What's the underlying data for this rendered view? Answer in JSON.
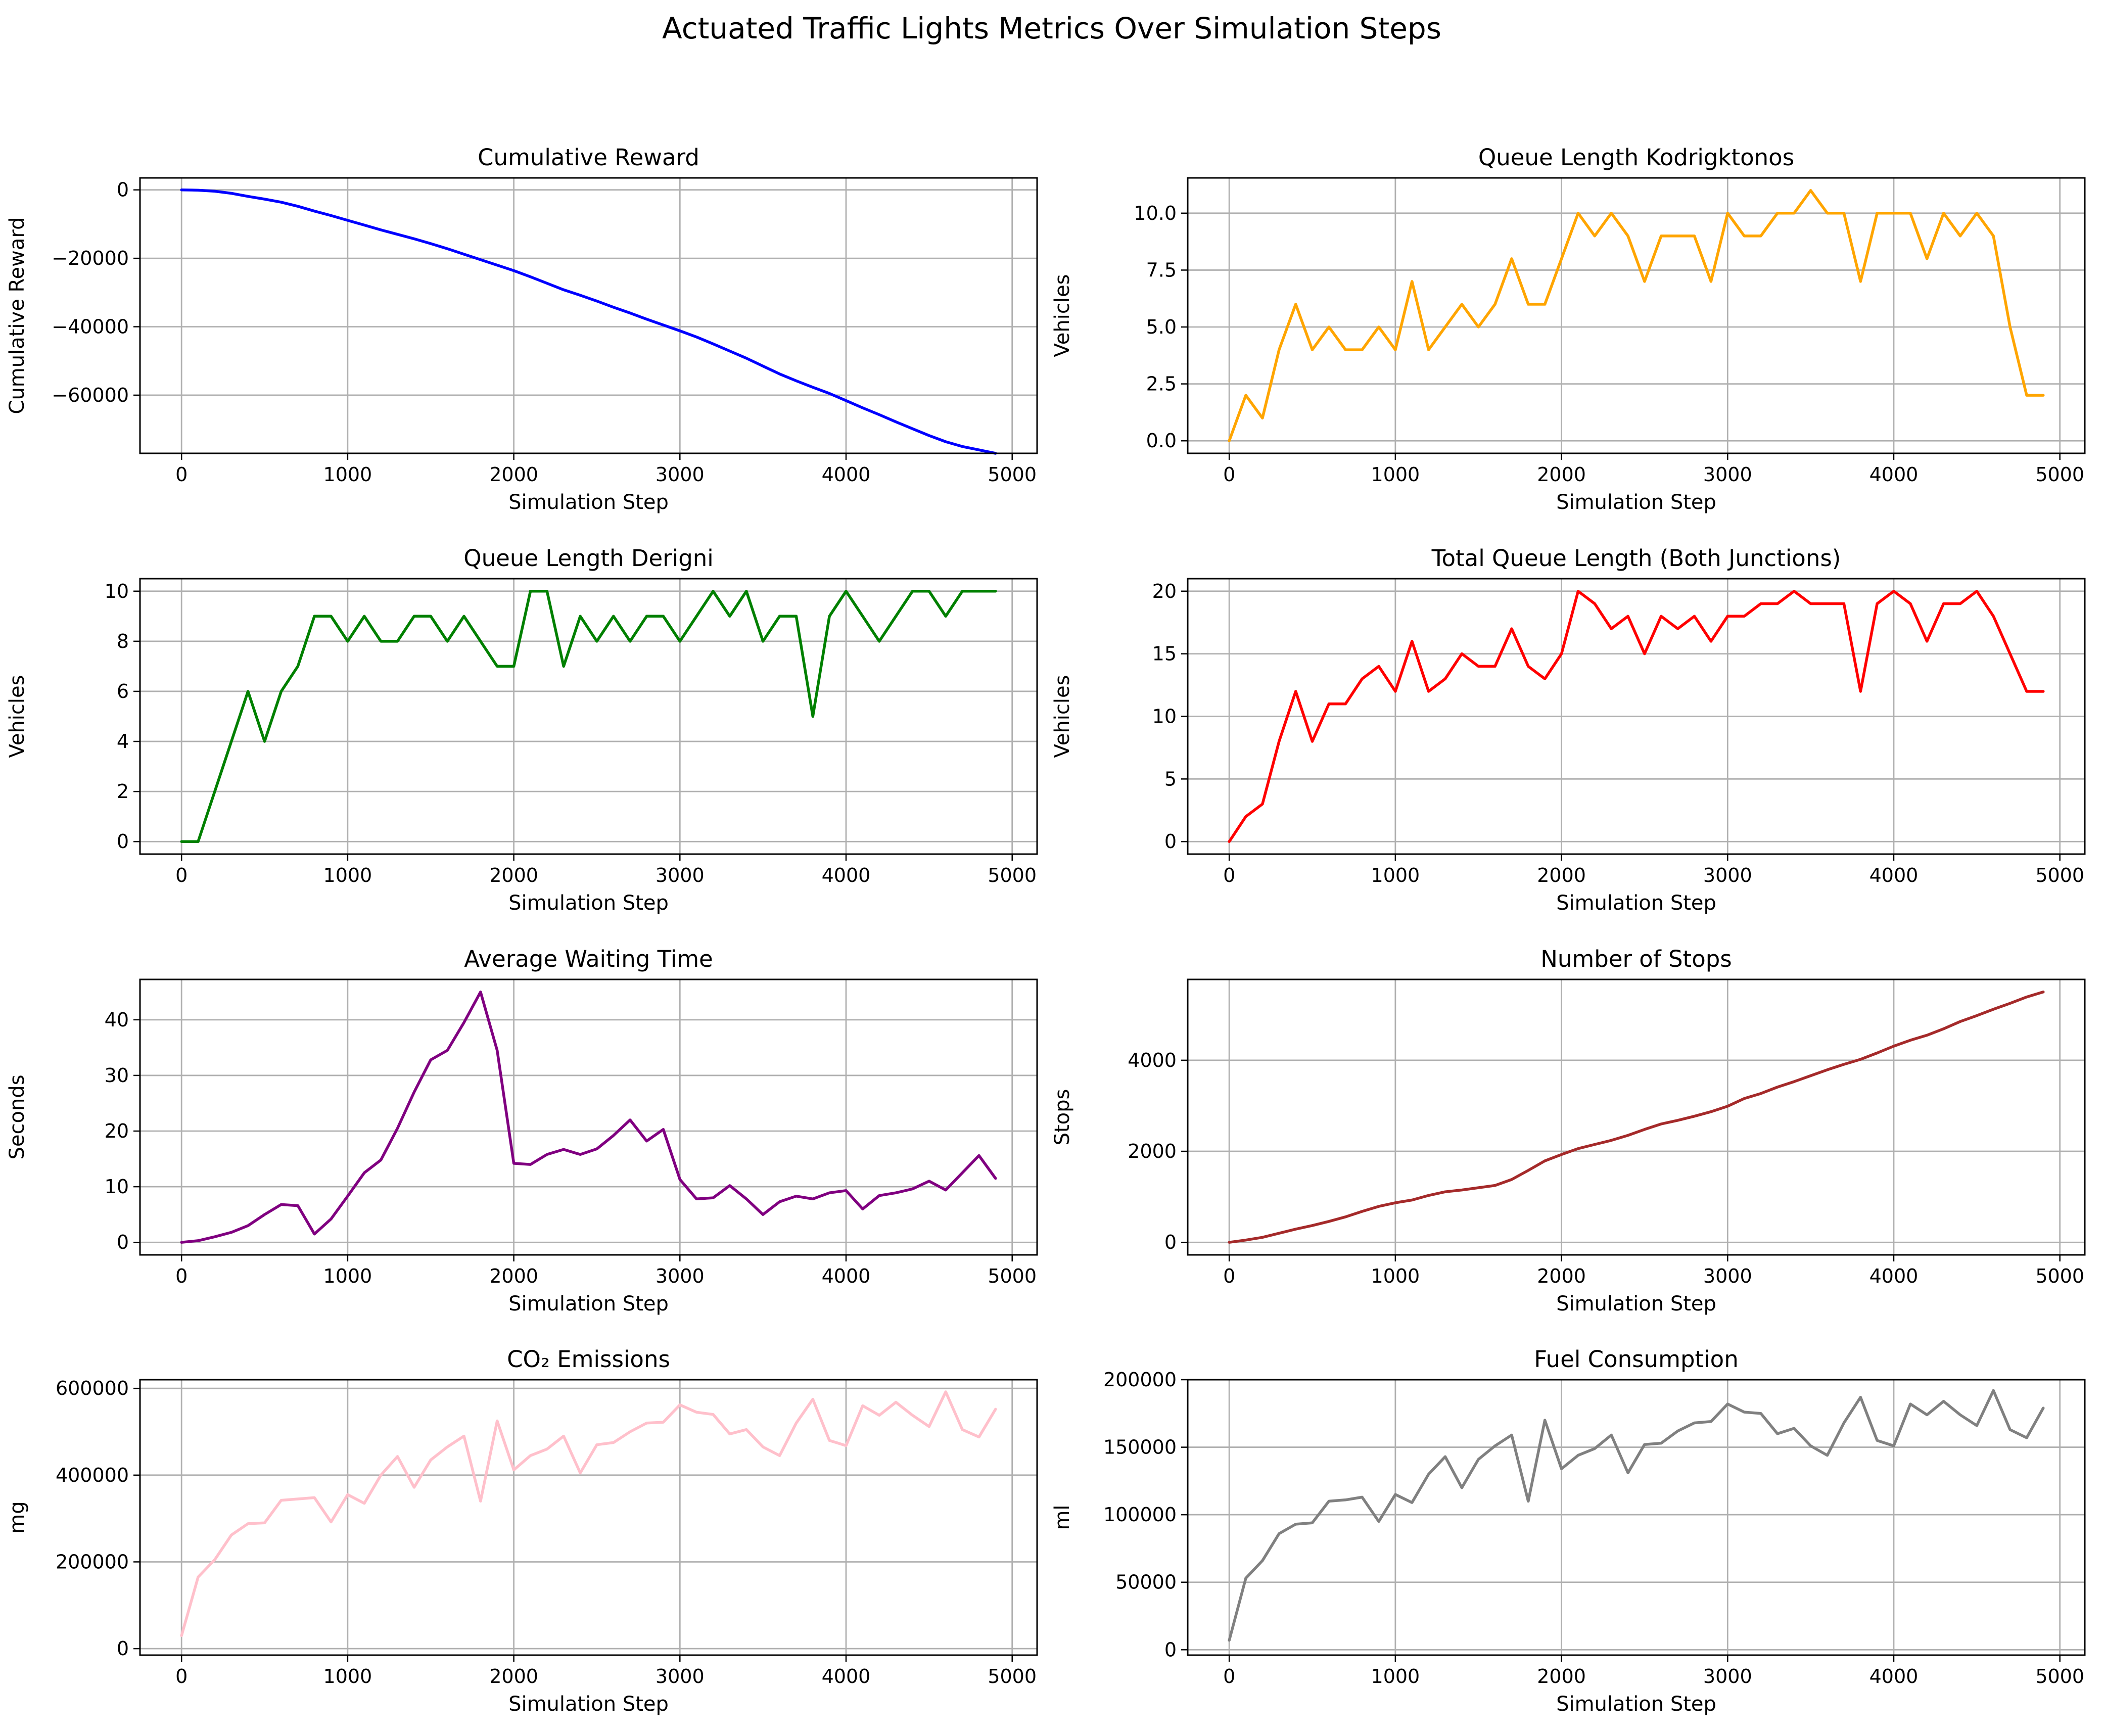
{
  "figure": {
    "title": "Actuated Traffic Lights Metrics Over Simulation Steps"
  },
  "colors": {
    "cumulative_reward": "#0000ff",
    "queue_kodrigktonos": "#ffa500",
    "queue_derigni": "#008000",
    "total_queue": "#ff0000",
    "avg_waiting": "#800080",
    "stops": "#a52a2a",
    "co2": "#ffc0cb",
    "fuel": "#808080",
    "grid": "#b0b0b0"
  },
  "chart_data": [
    {
      "id": "cumulative-reward",
      "type": "line",
      "title": "Cumulative Reward",
      "xlabel": "Simulation Step",
      "ylabel": "Cumulative Reward",
      "xlim": [
        -250,
        5150
      ],
      "ylim": [
        -77000,
        3500
      ],
      "xticks": [
        0,
        1000,
        2000,
        3000,
        4000,
        5000
      ],
      "yticks": [
        0,
        -20000,
        -40000,
        -60000
      ],
      "ytick_labels": [
        "0",
        "−20000",
        "−40000",
        "−60000"
      ],
      "grid": true,
      "color_key": "cumulative_reward",
      "x": [
        0,
        100,
        200,
        300,
        400,
        500,
        600,
        700,
        800,
        900,
        1000,
        1100,
        1200,
        1300,
        1400,
        1500,
        1600,
        1700,
        1800,
        1900,
        2000,
        2100,
        2200,
        2300,
        2400,
        2500,
        2600,
        2700,
        2800,
        2900,
        3000,
        3100,
        3200,
        3300,
        3400,
        3500,
        3600,
        3700,
        3800,
        3900,
        4000,
        4100,
        4200,
        4300,
        4400,
        4500,
        4600,
        4700,
        4800,
        4900
      ],
      "y": [
        0,
        -100,
        -400,
        -1000,
        -1900,
        -2700,
        -3600,
        -4800,
        -6200,
        -7500,
        -8900,
        -10300,
        -11700,
        -13000,
        -14300,
        -15700,
        -17200,
        -18800,
        -20400,
        -22000,
        -23600,
        -25400,
        -27300,
        -29200,
        -30800,
        -32500,
        -34300,
        -36000,
        -37800,
        -39500,
        -41200,
        -43000,
        -45000,
        -47100,
        -49200,
        -51500,
        -53800,
        -55800,
        -57700,
        -59500,
        -61600,
        -63700,
        -65700,
        -67800,
        -69800,
        -71800,
        -73600,
        -75000,
        -76000,
        -77000
      ]
    },
    {
      "id": "queue-kodrigktonos",
      "type": "line",
      "title": "Queue Length Kodrigktonos",
      "xlabel": "Simulation Step",
      "ylabel": "Vehicles",
      "xlim": [
        -250,
        5150
      ],
      "ylim": [
        -0.55,
        11.55
      ],
      "xticks": [
        0,
        1000,
        2000,
        3000,
        4000,
        5000
      ],
      "yticks": [
        0.0,
        2.5,
        5.0,
        7.5,
        10.0
      ],
      "ytick_labels": [
        "0.0",
        "2.5",
        "5.0",
        "7.5",
        "10.0"
      ],
      "grid": true,
      "color_key": "queue_kodrigktonos",
      "x": [
        0,
        100,
        200,
        300,
        400,
        500,
        600,
        700,
        800,
        900,
        1000,
        1100,
        1200,
        1300,
        1400,
        1500,
        1600,
        1700,
        1800,
        1900,
        2000,
        2100,
        2200,
        2300,
        2400,
        2500,
        2600,
        2700,
        2800,
        2900,
        3000,
        3100,
        3200,
        3300,
        3400,
        3500,
        3600,
        3700,
        3800,
        3900,
        4000,
        4100,
        4200,
        4300,
        4400,
        4500,
        4600,
        4700,
        4800,
        4900
      ],
      "y": [
        0,
        2,
        1,
        4,
        6,
        4,
        5,
        4,
        4,
        5,
        4,
        7,
        4,
        5,
        6,
        5,
        6,
        8,
        6,
        6,
        8,
        10,
        9,
        10,
        9,
        7,
        9,
        9,
        9,
        7,
        10,
        9,
        9,
        10,
        10,
        11,
        10,
        10,
        7,
        10,
        10,
        10,
        8,
        10,
        9,
        10,
        9,
        5,
        2,
        2
      ]
    },
    {
      "id": "queue-derigni",
      "type": "line",
      "title": "Queue Length Derigni",
      "xlabel": "Simulation Step",
      "ylabel": "Vehicles",
      "xlim": [
        -250,
        5150
      ],
      "ylim": [
        -0.5,
        10.5
      ],
      "xticks": [
        0,
        1000,
        2000,
        3000,
        4000,
        5000
      ],
      "yticks": [
        0,
        2,
        4,
        6,
        8,
        10
      ],
      "ytick_labels": [
        "0",
        "2",
        "4",
        "6",
        "8",
        "10"
      ],
      "grid": true,
      "color_key": "queue_derigni",
      "x": [
        0,
        100,
        200,
        300,
        400,
        500,
        600,
        700,
        800,
        900,
        1000,
        1100,
        1200,
        1300,
        1400,
        1500,
        1600,
        1700,
        1800,
        1900,
        2000,
        2100,
        2200,
        2300,
        2400,
        2500,
        2600,
        2700,
        2800,
        2900,
        3000,
        3100,
        3200,
        3300,
        3400,
        3500,
        3600,
        3700,
        3800,
        3900,
        4000,
        4100,
        4200,
        4300,
        4400,
        4500,
        4600,
        4700,
        4800,
        4900
      ],
      "y": [
        0,
        0,
        2,
        4,
        6,
        4,
        6,
        7,
        9,
        9,
        8,
        9,
        8,
        8,
        9,
        9,
        8,
        9,
        8,
        7,
        7,
        10,
        10,
        7,
        9,
        8,
        9,
        8,
        9,
        9,
        8,
        9,
        10,
        9,
        10,
        8,
        9,
        9,
        5,
        9,
        10,
        9,
        8,
        9,
        10,
        10,
        9,
        10,
        10,
        10
      ]
    },
    {
      "id": "total-queue",
      "type": "line",
      "title": "Total Queue Length (Both Junctions)",
      "xlabel": "Simulation Step",
      "ylabel": "Vehicles",
      "xlim": [
        -250,
        5150
      ],
      "ylim": [
        -1,
        21
      ],
      "xticks": [
        0,
        1000,
        2000,
        3000,
        4000,
        5000
      ],
      "yticks": [
        0,
        5,
        10,
        15,
        20
      ],
      "ytick_labels": [
        "0",
        "5",
        "10",
        "15",
        "20"
      ],
      "grid": true,
      "color_key": "total_queue",
      "x": [
        0,
        100,
        200,
        300,
        400,
        500,
        600,
        700,
        800,
        900,
        1000,
        1100,
        1200,
        1300,
        1400,
        1500,
        1600,
        1700,
        1800,
        1900,
        2000,
        2100,
        2200,
        2300,
        2400,
        2500,
        2600,
        2700,
        2800,
        2900,
        3000,
        3100,
        3200,
        3300,
        3400,
        3500,
        3600,
        3700,
        3800,
        3900,
        4000,
        4100,
        4200,
        4300,
        4400,
        4500,
        4600,
        4700,
        4800,
        4900
      ],
      "y": [
        0,
        2,
        3,
        8,
        12,
        8,
        11,
        11,
        13,
        14,
        12,
        16,
        12,
        13,
        15,
        14,
        14,
        17,
        14,
        13,
        15,
        20,
        19,
        17,
        18,
        15,
        18,
        17,
        18,
        16,
        18,
        18,
        19,
        19,
        20,
        19,
        19,
        19,
        12,
        19,
        20,
        19,
        16,
        19,
        19,
        20,
        18,
        15,
        12,
        12
      ]
    },
    {
      "id": "avg-waiting",
      "type": "line",
      "title": "Average Waiting Time",
      "xlabel": "Simulation Step",
      "ylabel": "Seconds",
      "xlim": [
        -250,
        5150
      ],
      "ylim": [
        -2.25,
        47.25
      ],
      "xticks": [
        0,
        1000,
        2000,
        3000,
        4000,
        5000
      ],
      "yticks": [
        0,
        10,
        20,
        30,
        40
      ],
      "ytick_labels": [
        "0",
        "10",
        "20",
        "30",
        "40"
      ],
      "grid": true,
      "color_key": "avg_waiting",
      "x": [
        0,
        100,
        200,
        300,
        400,
        500,
        600,
        700,
        800,
        900,
        1000,
        1100,
        1200,
        1300,
        1400,
        1500,
        1600,
        1700,
        1800,
        1900,
        2000,
        2100,
        2200,
        2300,
        2400,
        2500,
        2600,
        2700,
        2800,
        2900,
        3000,
        3100,
        3200,
        3300,
        3400,
        3500,
        3600,
        3700,
        3800,
        3900,
        4000,
        4100,
        4200,
        4300,
        4400,
        4500,
        4600,
        4700,
        4800,
        4900
      ],
      "y": [
        0,
        0.3,
        1,
        1.8,
        3,
        5,
        6.8,
        6.6,
        1.5,
        4.2,
        8.3,
        12.5,
        14.8,
        20.5,
        27,
        32.8,
        34.5,
        39.5,
        45,
        34.5,
        14.2,
        14,
        15.8,
        16.7,
        15.8,
        16.8,
        19.2,
        22,
        18.2,
        20.3,
        11.3,
        7.8,
        8,
        10.2,
        7.8,
        5,
        7.3,
        8.3,
        7.8,
        8.9,
        9.3,
        6,
        8.4,
        8.9,
        9.6,
        11,
        9.4,
        12.5,
        15.6,
        11.5
      ]
    },
    {
      "id": "number-of-stops",
      "type": "line",
      "title": "Number of Stops",
      "xlabel": "Simulation Step",
      "ylabel": "Stops",
      "xlim": [
        -250,
        5150
      ],
      "ylim": [
        -275,
        5775
      ],
      "xticks": [
        0,
        1000,
        2000,
        3000,
        4000,
        5000
      ],
      "yticks": [
        0,
        2000,
        4000
      ],
      "ytick_labels": [
        "0",
        "2000",
        "4000"
      ],
      "grid": true,
      "color_key": "stops",
      "x": [
        0,
        100,
        200,
        300,
        400,
        500,
        600,
        700,
        800,
        900,
        1000,
        1100,
        1200,
        1300,
        1400,
        1500,
        1600,
        1700,
        1800,
        1900,
        2000,
        2100,
        2200,
        2300,
        2400,
        2500,
        2600,
        2700,
        2800,
        2900,
        3000,
        3100,
        3200,
        3300,
        3400,
        3500,
        3600,
        3700,
        3800,
        3900,
        4000,
        4100,
        4200,
        4300,
        4400,
        4500,
        4600,
        4700,
        4800,
        4900
      ],
      "y": [
        0,
        50,
        110,
        200,
        290,
        370,
        460,
        560,
        680,
        790,
        870,
        930,
        1030,
        1110,
        1150,
        1200,
        1250,
        1380,
        1580,
        1790,
        1930,
        2060,
        2150,
        2240,
        2350,
        2480,
        2600,
        2680,
        2770,
        2870,
        2990,
        3160,
        3270,
        3410,
        3530,
        3660,
        3790,
        3910,
        4020,
        4160,
        4310,
        4440,
        4550,
        4690,
        4850,
        4980,
        5120,
        5250,
        5390,
        5500
      ]
    },
    {
      "id": "co2-emissions",
      "type": "line",
      "title": "CO₂ Emissions",
      "xlabel": "Simulation Step",
      "ylabel": "mg",
      "xlim": [
        -250,
        5150
      ],
      "ylim": [
        -15000,
        620000
      ],
      "xticks": [
        0,
        1000,
        2000,
        3000,
        4000,
        5000
      ],
      "yticks": [
        0,
        200000,
        400000,
        600000
      ],
      "ytick_labels": [
        "0",
        "200000",
        "400000",
        "600000"
      ],
      "grid": true,
      "color_key": "co2",
      "x": [
        0,
        100,
        200,
        300,
        400,
        500,
        600,
        700,
        800,
        900,
        1000,
        1100,
        1200,
        1300,
        1400,
        1500,
        1600,
        1700,
        1800,
        1900,
        2000,
        2100,
        2200,
        2300,
        2400,
        2500,
        2600,
        2700,
        2800,
        2900,
        3000,
        3100,
        3200,
        3300,
        3400,
        3500,
        3600,
        3700,
        3800,
        3900,
        4000,
        4100,
        4200,
        4300,
        4400,
        4500,
        4600,
        4700,
        4800,
        4900
      ],
      "y": [
        30000,
        165000,
        205000,
        262000,
        288000,
        290000,
        342000,
        345000,
        348000,
        292000,
        355000,
        335000,
        400000,
        443000,
        372000,
        435000,
        465000,
        490000,
        340000,
        525000,
        412000,
        445000,
        460000,
        490000,
        405000,
        470000,
        475000,
        500000,
        520000,
        522000,
        562000,
        545000,
        540000,
        495000,
        505000,
        465000,
        445000,
        520000,
        575000,
        480000,
        468000,
        560000,
        538000,
        568000,
        538000,
        512000,
        592000,
        505000,
        488000,
        552000
      ]
    },
    {
      "id": "fuel-consumption",
      "type": "line",
      "title": "Fuel Consumption",
      "xlabel": "Simulation Step",
      "ylabel": "ml",
      "xlim": [
        -250,
        5150
      ],
      "ylim": [
        -4000,
        200000
      ],
      "xticks": [
        0,
        1000,
        2000,
        3000,
        4000,
        5000
      ],
      "yticks": [
        0,
        50000,
        100000,
        150000,
        200000
      ],
      "ytick_labels": [
        "0",
        "50000",
        "100000",
        "150000",
        "200000"
      ],
      "grid": true,
      "color_key": "fuel",
      "x": [
        0,
        100,
        200,
        300,
        400,
        500,
        600,
        700,
        800,
        900,
        1000,
        1100,
        1200,
        1300,
        1400,
        1500,
        1600,
        1700,
        1800,
        1900,
        2000,
        2100,
        2200,
        2300,
        2400,
        2500,
        2600,
        2700,
        2800,
        2900,
        3000,
        3100,
        3200,
        3300,
        3400,
        3500,
        3600,
        3700,
        3800,
        3900,
        4000,
        4100,
        4200,
        4300,
        4400,
        4500,
        4600,
        4700,
        4800,
        4900
      ],
      "y": [
        7000,
        53000,
        66000,
        86000,
        93000,
        94000,
        110000,
        111000,
        113000,
        95000,
        115000,
        109000,
        130000,
        143000,
        120000,
        141000,
        151000,
        159000,
        110000,
        170000,
        134000,
        144000,
        149000,
        159000,
        131000,
        152000,
        153000,
        162000,
        168000,
        169000,
        182000,
        176000,
        175000,
        160000,
        164000,
        151000,
        144000,
        168000,
        187000,
        155000,
        151000,
        182000,
        174000,
        184000,
        174000,
        166000,
        192000,
        163000,
        157000,
        179000
      ]
    }
  ]
}
